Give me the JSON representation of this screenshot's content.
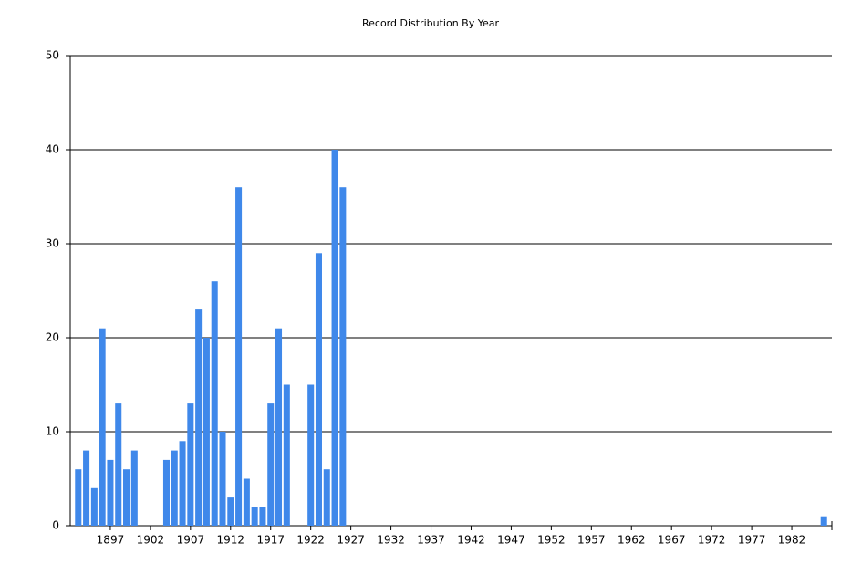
{
  "chart_data": {
    "type": "bar",
    "title": "Record Distribution By Year",
    "x": [
      1893,
      1894,
      1895,
      1896,
      1897,
      1898,
      1899,
      1900,
      1904,
      1905,
      1906,
      1907,
      1908,
      1909,
      1910,
      1911,
      1912,
      1913,
      1914,
      1915,
      1916,
      1917,
      1918,
      1919,
      1922,
      1923,
      1924,
      1925,
      1926,
      1986
    ],
    "values": [
      6,
      8,
      4,
      21,
      7,
      13,
      6,
      8,
      7,
      8,
      9,
      13,
      23,
      20,
      26,
      10,
      3,
      36,
      5,
      2,
      2,
      13,
      21,
      15,
      15,
      29,
      6,
      40,
      36,
      1
    ],
    "color": "#3f88ea",
    "xlim": [
      1892,
      1987
    ],
    "xticks": [
      1897,
      1902,
      1907,
      1912,
      1917,
      1922,
      1927,
      1932,
      1937,
      1942,
      1947,
      1952,
      1957,
      1962,
      1967,
      1972,
      1977,
      1982
    ],
    "ylim": [
      0,
      50
    ],
    "yticks": [
      0,
      10,
      20,
      30,
      40,
      50
    ],
    "grid": true
  }
}
